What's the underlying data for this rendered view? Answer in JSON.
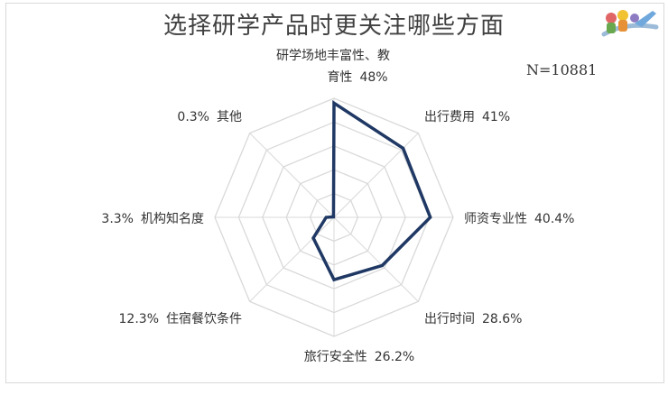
{
  "title": "选择研学产品时更关注哪些方面",
  "sample_size": "N=10881",
  "chart_data": {
    "type": "radar",
    "title": "选择研学产品时更关注哪些方面",
    "axes": [
      {
        "line1": "研学场地丰富性、教",
        "line2": "育性",
        "value": 48,
        "label": "48%"
      },
      {
        "line1": "出行费用",
        "value": 41,
        "label": "41%"
      },
      {
        "line1": "师资专业性",
        "value": 40.4,
        "label": "40.4%"
      },
      {
        "line1": "出行时间",
        "value": 28.6,
        "label": "28.6%"
      },
      {
        "line1": "旅行安全性",
        "value": 26.2,
        "label": "26.2%"
      },
      {
        "line1": "住宿餐饮条件",
        "value": 12.3,
        "label": "12.3%"
      },
      {
        "line1": "机构知名度",
        "value": 3.3,
        "label": "3.3%"
      },
      {
        "line1": "其他",
        "value": 0.3,
        "label": "0.3%"
      }
    ],
    "rmax": 50,
    "grid_rings": 5,
    "line_color": "#1f3864",
    "grid_color": "#d9d9d9"
  }
}
